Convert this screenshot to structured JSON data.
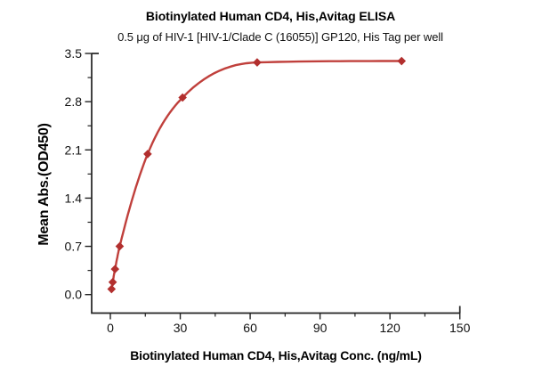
{
  "chart_data": {
    "type": "scatter",
    "title": "Biotinylated Human CD4, His,Avitag ELISA",
    "subtitle": "0.5 μg of HIV-1 [HIV-1/Clade C (16055)] GP120, His Tag per well",
    "xlabel": "Biotinylated Human CD4, His,Avitag Conc. (ng/mL)",
    "ylabel": "Mean Abs.(OD450)",
    "x": [
      0.5,
      1,
      2,
      4,
      16,
      31,
      63,
      125
    ],
    "y": [
      0.08,
      0.18,
      0.37,
      0.7,
      2.04,
      2.86,
      3.37,
      3.39
    ],
    "curve": "4PL sigmoid fit through data points",
    "marker": "diamond",
    "xlim": [
      0,
      150
    ],
    "ylim": [
      0,
      3.5
    ],
    "x_ticks": {
      "major": [
        0,
        30,
        60,
        90,
        120,
        150
      ],
      "labels": [
        "0",
        "30",
        "60",
        "90",
        "120",
        "150"
      ],
      "minor": [
        15,
        45,
        75,
        105,
        135
      ]
    },
    "y_ticks": {
      "major": [
        0,
        0.7,
        1.4,
        2.1,
        2.8,
        3.5
      ],
      "labels": [
        "0.0",
        "0.7",
        "1.4",
        "2.1",
        "2.8",
        "3.5"
      ],
      "minor": [
        0.35,
        1.05,
        1.75,
        2.45,
        3.15
      ]
    },
    "grid": false,
    "legend": null,
    "colors": {
      "marker": "#b22f2e",
      "curve": "#c0403c",
      "axis": "#222222",
      "text": "#111111",
      "background": "#ffffff"
    }
  }
}
